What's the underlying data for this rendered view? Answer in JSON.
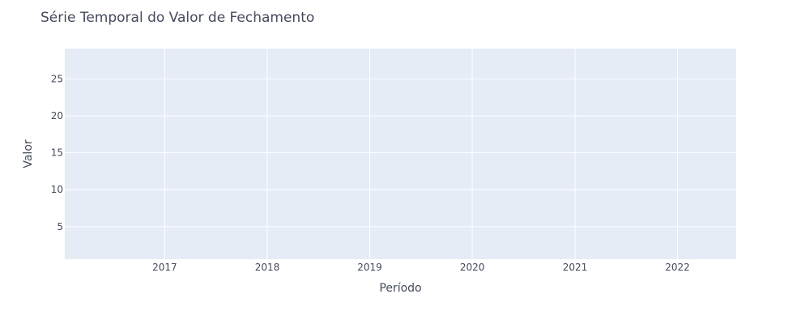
{
  "chart_data": {
    "type": "line",
    "title": "Série Temporal do Valor de Fechamento",
    "xlabel": "Período",
    "ylabel": "Valor",
    "x_axis_type": "date",
    "xlim": [
      "2016-01-11",
      "2022-07-29"
    ],
    "ylim": [
      0.6,
      29.1
    ],
    "x_ticks": [
      {
        "value": "2017-01-01",
        "label": "2017"
      },
      {
        "value": "2018-01-01",
        "label": "2018"
      },
      {
        "value": "2019-01-01",
        "label": "2019"
      },
      {
        "value": "2020-01-01",
        "label": "2020"
      },
      {
        "value": "2021-01-01",
        "label": "2021"
      },
      {
        "value": "2022-01-01",
        "label": "2022"
      }
    ],
    "y_ticks": [
      5,
      10,
      15,
      20,
      25
    ],
    "grid": true,
    "series": [],
    "colors": {
      "plot_background": "#e5ecf6",
      "grid": "#ffffff",
      "text": "#444a5b"
    }
  }
}
